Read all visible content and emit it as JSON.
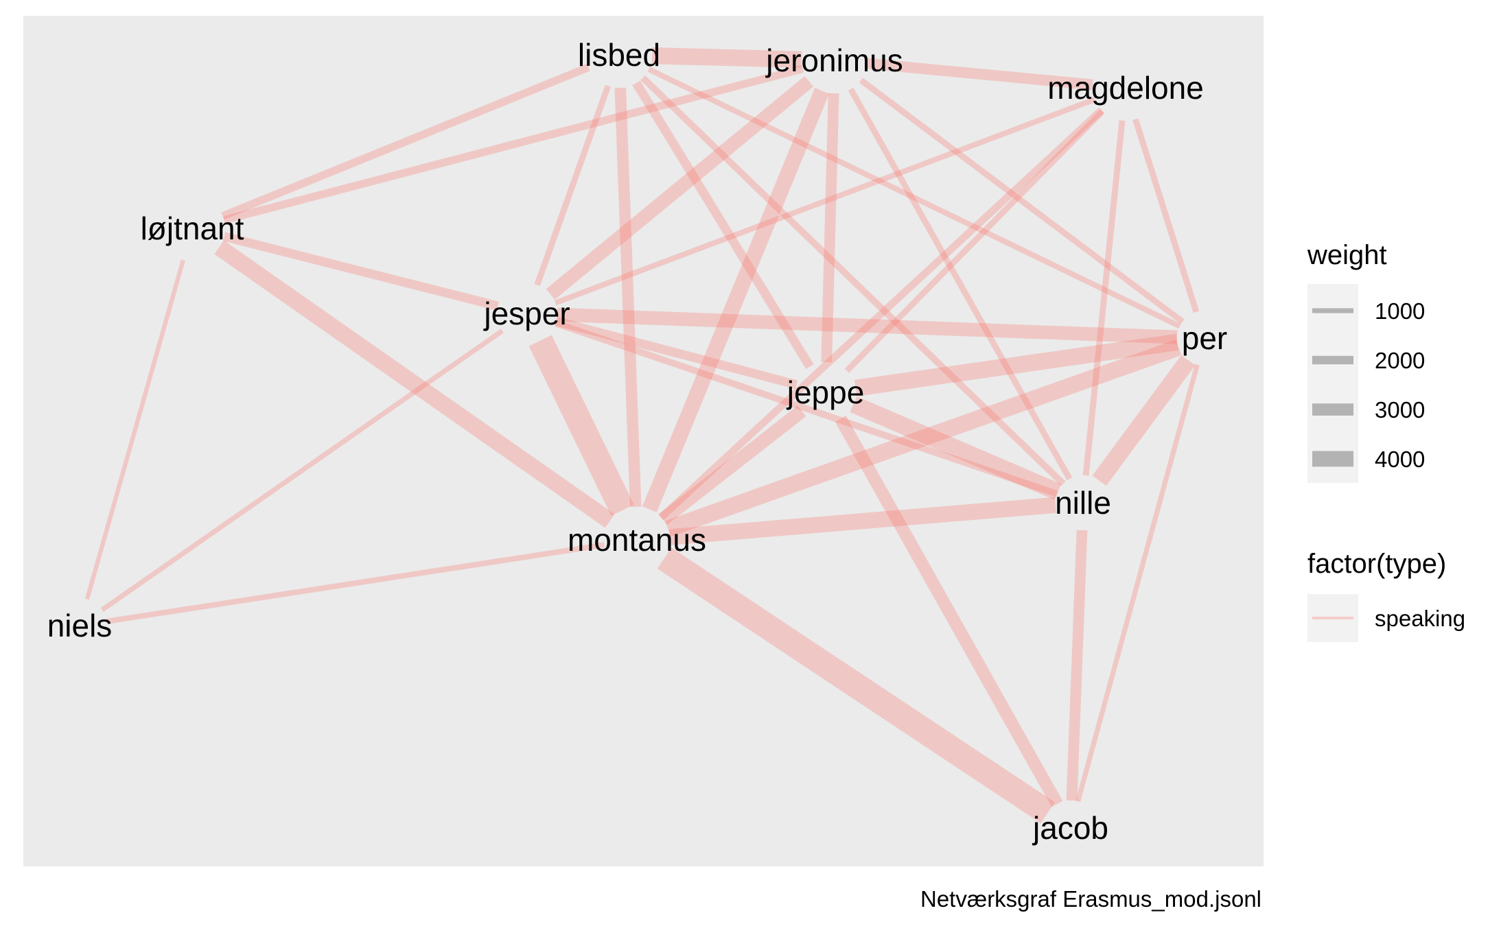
{
  "plot": {
    "panel_background": "#EBEBEB",
    "edge_color": "#F8766D",
    "edge_alpha": 0.3
  },
  "nodes": [
    {
      "id": "lisbed",
      "label": "lisbed"
    },
    {
      "id": "jeronimus",
      "label": "jeronimus"
    },
    {
      "id": "magdelone",
      "label": "magdelone"
    },
    {
      "id": "løjtnant",
      "label": "løjtnant"
    },
    {
      "id": "jesper",
      "label": "jesper"
    },
    {
      "id": "per",
      "label": "per"
    },
    {
      "id": "jeppe",
      "label": "jeppe"
    },
    {
      "id": "nille",
      "label": "nille"
    },
    {
      "id": "montanus",
      "label": "montanus"
    },
    {
      "id": "niels",
      "label": "niels"
    },
    {
      "id": "jacob",
      "label": "jacob"
    }
  ],
  "edges": [
    {
      "source": "lisbed",
      "target": "jeronimus",
      "weight": 2500
    },
    {
      "source": "jeronimus",
      "target": "magdelone",
      "weight": 1500
    },
    {
      "source": "lisbed",
      "target": "løjtnant",
      "weight": 1000
    },
    {
      "source": "jeronimus",
      "target": "løjtnant",
      "weight": 1000
    },
    {
      "source": "løjtnant",
      "target": "jesper",
      "weight": 1200
    },
    {
      "source": "løjtnant",
      "target": "montanus",
      "weight": 2500
    },
    {
      "source": "løjtnant",
      "target": "niels",
      "weight": 400
    },
    {
      "source": "lisbed",
      "target": "jesper",
      "weight": 700
    },
    {
      "source": "lisbed",
      "target": "montanus",
      "weight": 1600
    },
    {
      "source": "lisbed",
      "target": "jeppe",
      "weight": 1200
    },
    {
      "source": "lisbed",
      "target": "nille",
      "weight": 800
    },
    {
      "source": "lisbed",
      "target": "per",
      "weight": 600
    },
    {
      "source": "jeronimus",
      "target": "jesper",
      "weight": 2000
    },
    {
      "source": "jeronimus",
      "target": "montanus",
      "weight": 2300
    },
    {
      "source": "jeronimus",
      "target": "jeppe",
      "weight": 1500
    },
    {
      "source": "jeronimus",
      "target": "nille",
      "weight": 700
    },
    {
      "source": "jeronimus",
      "target": "per",
      "weight": 700
    },
    {
      "source": "magdelone",
      "target": "jesper",
      "weight": 600
    },
    {
      "source": "magdelone",
      "target": "jeppe",
      "weight": 700
    },
    {
      "source": "magdelone",
      "target": "montanus",
      "weight": 900
    },
    {
      "source": "magdelone",
      "target": "nille",
      "weight": 700
    },
    {
      "source": "magdelone",
      "target": "per",
      "weight": 700
    },
    {
      "source": "jesper",
      "target": "per",
      "weight": 2000
    },
    {
      "source": "jesper",
      "target": "jeppe",
      "weight": 1200
    },
    {
      "source": "jesper",
      "target": "nille",
      "weight": 800
    },
    {
      "source": "jesper",
      "target": "montanus",
      "weight": 4000
    },
    {
      "source": "jesper",
      "target": "niels",
      "weight": 500
    },
    {
      "source": "jeppe",
      "target": "per",
      "weight": 2500
    },
    {
      "source": "jeppe",
      "target": "nille",
      "weight": 2600
    },
    {
      "source": "jeppe",
      "target": "montanus",
      "weight": 2000
    },
    {
      "source": "jeppe",
      "target": "jacob",
      "weight": 1800
    },
    {
      "source": "per",
      "target": "nille",
      "weight": 2600
    },
    {
      "source": "per",
      "target": "montanus",
      "weight": 2500
    },
    {
      "source": "per",
      "target": "jacob",
      "weight": 500
    },
    {
      "source": "nille",
      "target": "montanus",
      "weight": 2400
    },
    {
      "source": "nille",
      "target": "jacob",
      "weight": 1500
    },
    {
      "source": "montanus",
      "target": "jacob",
      "weight": 4000
    },
    {
      "source": "montanus",
      "target": "niels",
      "weight": 600
    }
  ],
  "legend": {
    "weight": {
      "title": "weight",
      "breaks": [
        1000,
        2000,
        3000,
        4000
      ],
      "labels": [
        "1000",
        "2000",
        "3000",
        "4000"
      ]
    },
    "type": {
      "title": "factor(type)",
      "labels": [
        "speaking"
      ]
    }
  },
  "caption": "Netværksgraf Erasmus_mod.jsonl"
}
